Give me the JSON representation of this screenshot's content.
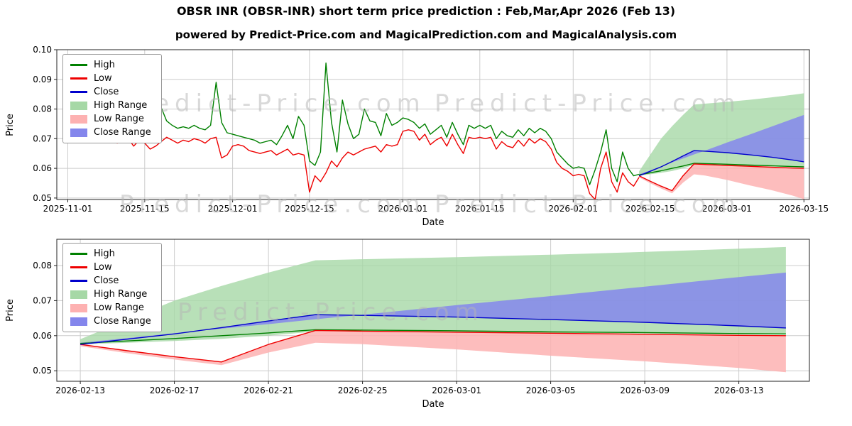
{
  "header": {
    "title": "OBSR INR (OBSR-INR) short term price prediction : Feb,Mar,Apr 2026 (Feb 13)",
    "subtitle": "powered by Predict-Price.com and MagicalPrediction.com and MagicalAnalysis.com"
  },
  "watermark": "Predict-Price.com",
  "legend": [
    "High",
    "Low",
    "Close",
    "High Range",
    "Low Range",
    "Close Range"
  ],
  "colors": {
    "high": "#008000",
    "low": "#ee0000",
    "close": "#0000cc",
    "high_range": "#a6d8a6",
    "low_range": "#fdb1b1",
    "close_range": "#8486ec",
    "grid": "#cccccc",
    "axis": "#222222"
  },
  "chart_data": [
    {
      "type": "line",
      "title": "OBSR INR (OBSR-INR) short term price prediction : Feb,Mar,Apr 2026 (Feb 13)",
      "xlabel": "Date",
      "ylabel": "Price",
      "grid": true,
      "legend_position": "upper left",
      "ylim": [
        0.0495,
        0.1
      ],
      "yticks": [
        0.05,
        0.06,
        0.07,
        0.08,
        0.09,
        0.1
      ],
      "xrange": [
        "2025-10-30",
        "2026-03-16"
      ],
      "xticks": [
        "2025-11-01",
        "2025-11-15",
        "2025-12-01",
        "2025-12-15",
        "2026-01-01",
        "2026-01-15",
        "2026-02-01",
        "2026-02-15",
        "2026-03-01",
        "2026-03-15"
      ],
      "history": {
        "start": "2025-11-01",
        "interval_days": 1,
        "high": [
          0.097,
          0.0905,
          0.094,
          0.086,
          0.0825,
          0.0905,
          0.082,
          0.0785,
          0.075,
          0.0745,
          0.075,
          0.0755,
          0.072,
          0.085,
          0.078,
          0.0715,
          0.073,
          0.0805,
          0.076,
          0.0745,
          0.0735,
          0.074,
          0.0735,
          0.0745,
          0.0735,
          0.073,
          0.0745,
          0.089,
          0.0755,
          0.072,
          0.0715,
          0.071,
          0.0705,
          0.07,
          0.0695,
          0.0685,
          0.069,
          0.0695,
          0.068,
          0.071,
          0.0745,
          0.07,
          0.0775,
          0.0745,
          0.0625,
          0.061,
          0.0655,
          0.0955,
          0.0755,
          0.0655,
          0.083,
          0.075,
          0.07,
          0.0715,
          0.08,
          0.076,
          0.0755,
          0.071,
          0.0785,
          0.0745,
          0.0755,
          0.077,
          0.0765,
          0.0755,
          0.0735,
          0.075,
          0.0715,
          0.073,
          0.0745,
          0.0705,
          0.0755,
          0.0715,
          0.068,
          0.0745,
          0.0735,
          0.0745,
          0.0735,
          0.0745,
          0.07,
          0.0725,
          0.071,
          0.0705,
          0.073,
          0.071,
          0.0735,
          0.072,
          0.0735,
          0.0725,
          0.07,
          0.0655,
          0.0635,
          0.0615,
          0.06,
          0.0605,
          0.06,
          0.0545,
          0.0595,
          0.0655,
          0.073,
          0.06,
          0.0555,
          0.0655,
          0.06,
          0.0575,
          0.058
        ],
        "low": [
          0.0805,
          0.0765,
          0.078,
          0.0745,
          0.0725,
          0.0745,
          0.0725,
          0.071,
          0.0695,
          0.0685,
          0.0695,
          0.07,
          0.0675,
          0.0695,
          0.0685,
          0.0665,
          0.0675,
          0.069,
          0.0705,
          0.0695,
          0.0685,
          0.0695,
          0.069,
          0.07,
          0.0695,
          0.0685,
          0.07,
          0.0705,
          0.0635,
          0.0645,
          0.0675,
          0.068,
          0.0675,
          0.066,
          0.0655,
          0.065,
          0.0655,
          0.066,
          0.0645,
          0.0655,
          0.0665,
          0.0645,
          0.065,
          0.0645,
          0.052,
          0.0575,
          0.0555,
          0.0585,
          0.0625,
          0.0605,
          0.0635,
          0.0655,
          0.0645,
          0.0655,
          0.0665,
          0.067,
          0.0675,
          0.0655,
          0.068,
          0.0675,
          0.068,
          0.0725,
          0.073,
          0.0725,
          0.0695,
          0.0715,
          0.068,
          0.0695,
          0.0705,
          0.0675,
          0.0715,
          0.068,
          0.065,
          0.0705,
          0.07,
          0.0705,
          0.07,
          0.0705,
          0.0665,
          0.069,
          0.0675,
          0.067,
          0.0695,
          0.0675,
          0.07,
          0.0685,
          0.07,
          0.069,
          0.0665,
          0.062,
          0.06,
          0.059,
          0.0575,
          0.058,
          0.0575,
          0.0515,
          0.0495,
          0.06,
          0.0655,
          0.0555,
          0.052,
          0.0585,
          0.0555,
          0.054,
          0.057
        ]
      },
      "forecast": {
        "dates": [
          "2026-02-13",
          "2026-02-15",
          "2026-02-17",
          "2026-02-19",
          "2026-02-21",
          "2026-02-23",
          "2026-02-25",
          "2026-03-01",
          "2026-03-05",
          "2026-03-09",
          "2026-03-13",
          "2026-03-15"
        ],
        "close": [
          0.0575,
          0.059,
          0.0605,
          0.0623,
          0.0642,
          0.066,
          0.0658,
          0.0653,
          0.0646,
          0.0638,
          0.0628,
          0.0622
        ],
        "low": [
          0.0575,
          0.0557,
          0.054,
          0.0525,
          0.0575,
          0.0615,
          0.0613,
          0.061,
          0.0607,
          0.0604,
          0.0601,
          0.06
        ],
        "high_line": [
          0.0578,
          0.0585,
          0.0592,
          0.06,
          0.0608,
          0.0617,
          0.0616,
          0.0614,
          0.0611,
          0.0609,
          0.0606,
          0.0605
        ],
        "high_upper": [
          0.059,
          0.0645,
          0.07,
          0.0742,
          0.078,
          0.0815,
          0.0818,
          0.0824,
          0.0831,
          0.0839,
          0.0848,
          0.0853
        ],
        "high_lower": [
          0.0575,
          0.058,
          0.0585,
          0.0591,
          0.06,
          0.0612,
          0.0611,
          0.061,
          0.0608,
          0.0606,
          0.0604,
          0.0603
        ],
        "close_upper": [
          0.058,
          0.0593,
          0.0607,
          0.062,
          0.0633,
          0.0647,
          0.066,
          0.0687,
          0.0713,
          0.074,
          0.0767,
          0.078
        ],
        "low_lower": [
          0.057,
          0.055,
          0.0532,
          0.0516,
          0.0552,
          0.058,
          0.0576,
          0.0561,
          0.0543,
          0.0527,
          0.0508,
          0.0496
        ]
      }
    },
    {
      "type": "line",
      "note": "zoomed view of the forecast period of the top chart (same forecast series)",
      "xlabel": "Date",
      "ylabel": "Price",
      "grid": true,
      "legend_position": "upper left",
      "ylim": [
        0.047,
        0.0875
      ],
      "yticks": [
        0.05,
        0.06,
        0.07,
        0.08
      ],
      "xrange": [
        "2026-02-12",
        "2026-03-16"
      ],
      "xticks": [
        "2026-02-13",
        "2026-02-17",
        "2026-02-21",
        "2026-02-25",
        "2026-03-01",
        "2026-03-05",
        "2026-03-09",
        "2026-03-13"
      ]
    }
  ]
}
